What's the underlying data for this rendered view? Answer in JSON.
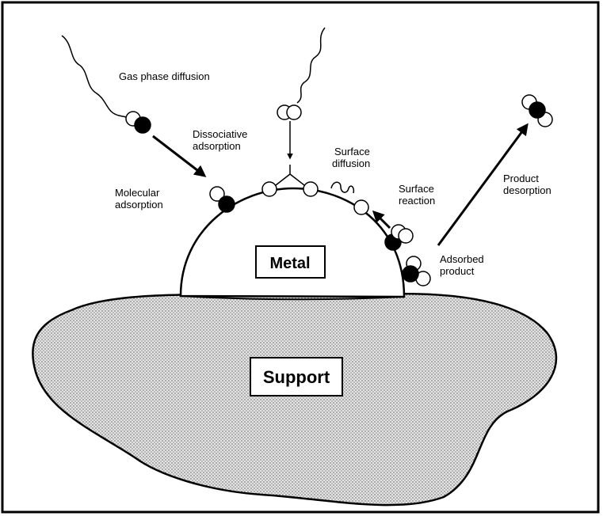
{
  "labels": {
    "gas_phase_diffusion": "Gas phase diffusion",
    "dissociative_adsorption": [
      "Dissociative",
      "adsorption"
    ],
    "surface_diffusion": [
      "Surface",
      "diffusion"
    ],
    "molecular_adsorption": [
      "Molecular",
      "adsorption"
    ],
    "surface_reaction": [
      "Surface",
      "reaction"
    ],
    "product_desorption": [
      "Product",
      "desorption"
    ],
    "adsorbed_product": [
      "Adsorbed",
      "product"
    ],
    "metal": "Metal",
    "support": "Support"
  }
}
